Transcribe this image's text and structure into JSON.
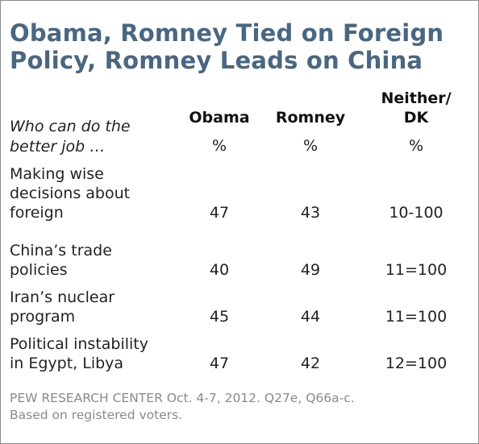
{
  "title_lines": [
    "Obama, Romney Tied on Foreign",
    "Policy, Romney Leads on China"
  ],
  "question_lines": [
    "Who can do the",
    "better job …"
  ],
  "columns": [
    {
      "lines": [
        "",
        "Obama"
      ],
      "unit": "%"
    },
    {
      "lines": [
        "",
        "Romney"
      ],
      "unit": "%"
    },
    {
      "lines": [
        "Neither/",
        "DK"
      ],
      "unit": "%"
    }
  ],
  "rows": [
    {
      "label_lines": [
        "Making wise",
        "decisions about",
        "foreign"
      ],
      "obama": "47",
      "romney": "43",
      "neither": "10-100"
    },
    {
      "label_lines": [
        "China’s trade",
        "policies"
      ],
      "obama": "40",
      "romney": "49",
      "neither": "11=100"
    },
    {
      "label_lines": [
        "Iran’s nuclear",
        "program"
      ],
      "obama": "45",
      "romney": "44",
      "neither": "11=100"
    },
    {
      "label_lines": [
        "Political instability",
        "in Egypt, Libya"
      ],
      "obama": "47",
      "romney": "42",
      "neither": "12=100"
    }
  ],
  "source_lines": [
    "PEW RESEARCH CENTER Oct. 4-7, 2012. Q27e, Q66a-c.",
    "Based on registered voters."
  ],
  "colors": {
    "title": "#4a6680",
    "text": "#222222",
    "source": "#8a8a8a",
    "border": "#8c8c8c"
  },
  "chart_data": {
    "type": "table",
    "title": "Obama, Romney Tied on Foreign Policy, Romney Leads on China",
    "question": "Who can do the better job …",
    "columns": [
      "Obama",
      "Romney",
      "Neither/DK"
    ],
    "unit": "%",
    "rows": [
      {
        "label": "Making wise decisions about foreign",
        "values": [
          47,
          43,
          10
        ],
        "total": "100"
      },
      {
        "label": "China’s trade policies",
        "values": [
          40,
          49,
          11
        ],
        "total": "100"
      },
      {
        "label": "Iran’s nuclear program",
        "values": [
          45,
          44,
          11
        ],
        "total": "100"
      },
      {
        "label": "Political instability in Egypt, Libya",
        "values": [
          47,
          42,
          12
        ],
        "total": "100"
      }
    ]
  }
}
